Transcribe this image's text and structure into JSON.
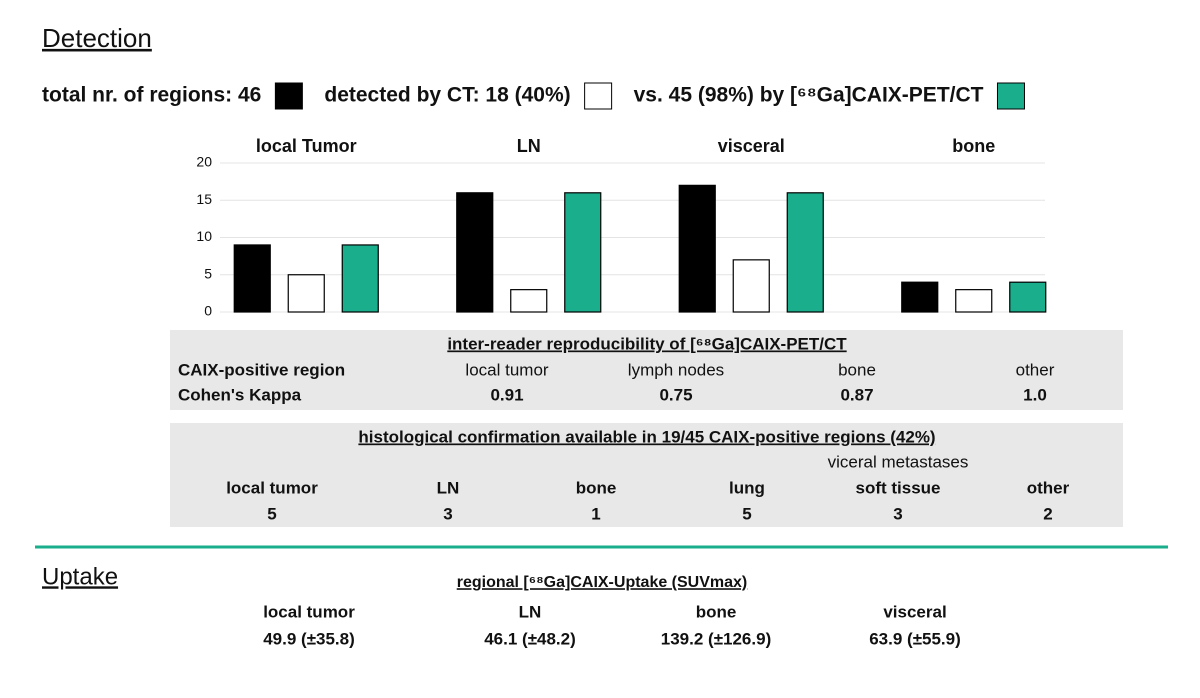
{
  "detection": {
    "title": "Detection"
  },
  "chart_data": {
    "type": "bar",
    "categories": [
      "local Tumor",
      "LN",
      "visceral",
      "bone"
    ],
    "series": [
      {
        "name": "total nr. of regions: 46",
        "color": "#000000",
        "values": [
          9,
          16,
          17,
          4
        ]
      },
      {
        "name": "detected by CT: 18 (40%)",
        "color": "#ffffff",
        "values": [
          5,
          3,
          7,
          3
        ]
      },
      {
        "name": "vs. 45 (98%) by [⁶⁸Ga]CAIX-PET/CT",
        "color": "#1aae8c",
        "values": [
          9,
          16,
          16,
          4
        ]
      }
    ],
    "ylim": [
      0,
      20
    ],
    "yticks": [
      0,
      5,
      10,
      15,
      20
    ],
    "grid": true
  },
  "reproducibility": {
    "title": "inter-reader reproducibility of [⁶⁸Ga]CAIX-PET/CT",
    "row_headers": [
      "CAIX-positive region",
      "Cohen's Kappa"
    ],
    "regions": [
      "local tumor",
      "lymph nodes",
      "bone",
      "other"
    ],
    "kappa": [
      "0.91",
      "0.75",
      "0.87",
      "1.0"
    ]
  },
  "histology": {
    "title": "histological confirmation available in 19/45 CAIX-positive regions (42%)",
    "group_label": "viceral metastases",
    "labels": [
      "local tumor",
      "LN",
      "bone",
      "lung",
      "soft tissue",
      "other"
    ],
    "counts": [
      "5",
      "3",
      "1",
      "5",
      "3",
      "2"
    ]
  },
  "uptake": {
    "title": "Uptake",
    "subtitle": "regional [⁶⁸Ga]CAIX-Uptake (SUVmax)",
    "labels": [
      "local tumor",
      "LN",
      "bone",
      "visceral"
    ],
    "values": [
      "49.9 (±35.8)",
      "46.1 (±48.2)",
      "139.2 (±126.9)",
      "63.9 (±55.9)"
    ]
  }
}
